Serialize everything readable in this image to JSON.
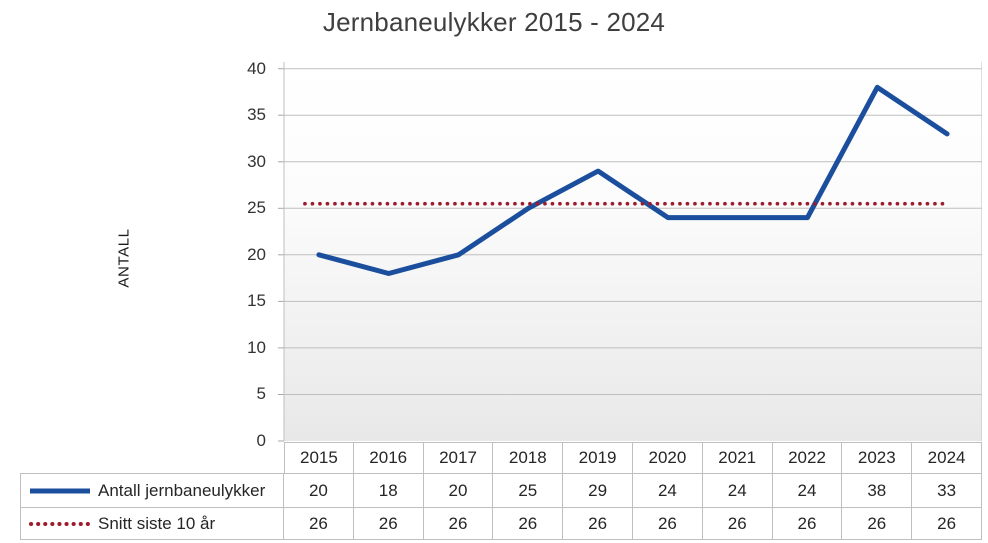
{
  "title": "Jernbaneulykker 2015 - 2024",
  "chart_data": {
    "type": "line",
    "title": "Jernbaneulykker 2015 - 2024",
    "xlabel": "",
    "ylabel": "ANTALL",
    "categories": [
      "2015",
      "2016",
      "2017",
      "2018",
      "2019",
      "2020",
      "2021",
      "2022",
      "2023",
      "2024"
    ],
    "y_ticks": [
      0,
      5,
      10,
      15,
      20,
      25,
      30,
      35,
      40
    ],
    "ylim": [
      0,
      40
    ],
    "grid": "horizontal",
    "grid_color": "#bfbfbf",
    "tick_color": "#a6a6a6",
    "legend_position": "data-table-left",
    "series": [
      {
        "name": "Antall jernbaneulykker",
        "values": [
          20,
          18,
          20,
          25,
          29,
          24,
          24,
          24,
          38,
          33
        ],
        "color": "#1b4f9d",
        "line_style": "solid"
      },
      {
        "name": "Snitt siste 10 år",
        "values": [
          26,
          26,
          26,
          26,
          26,
          26,
          26,
          26,
          26,
          26
        ],
        "plotted_line_value": 25.5,
        "color": "#9e1b2c",
        "line_style": "dotted"
      }
    ]
  }
}
